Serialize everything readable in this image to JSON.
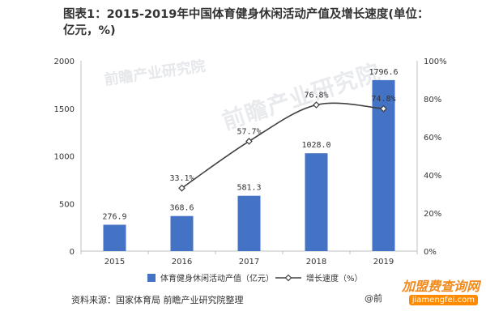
{
  "title": "图表1：2015-2019年中国体育健身休闲活动产值及增长速度(单位：亿元，%)",
  "source": "资料来源：国家体育局 前瞻产业研究院整理",
  "watermark_text": "前瞻产业研究院",
  "brand": {
    "name": "加盟费查询网",
    "url": "jiamengfei.com",
    "prefix": "@前"
  },
  "colors": {
    "bar": "#4472c4",
    "line": "#404040",
    "axis": "#bfbfbf",
    "text": "#333333"
  },
  "chart_data": {
    "type": "bar",
    "categories": [
      "2015",
      "2016",
      "2017",
      "2018",
      "2019"
    ],
    "series": [
      {
        "name": "体育健身休闲活动产值（亿元）",
        "type": "bar",
        "axis": "left",
        "values": [
          276.9,
          368.6,
          581.3,
          1028.0,
          1796.6
        ],
        "labels": [
          "276.9",
          "368.6",
          "581.3",
          "1028.0",
          "1796.6"
        ]
      },
      {
        "name": "增长速度（%）",
        "type": "line",
        "axis": "right",
        "x": [
          "2016",
          "2017",
          "2018",
          "2019"
        ],
        "values": [
          33.1,
          57.7,
          76.8,
          74.8
        ],
        "labels": [
          "33.1%",
          "57.7%",
          "76.8%",
          "74.8%"
        ]
      }
    ],
    "y_left": {
      "range": [
        0,
        2000
      ],
      "ticks": [
        "0",
        "500",
        "1000",
        "1500",
        "2000"
      ]
    },
    "y_right": {
      "range": [
        0,
        100
      ],
      "ticks": [
        "0%",
        "20%",
        "40%",
        "60%",
        "80%",
        "100%"
      ]
    },
    "grid": false,
    "legend_position": "bottom"
  }
}
